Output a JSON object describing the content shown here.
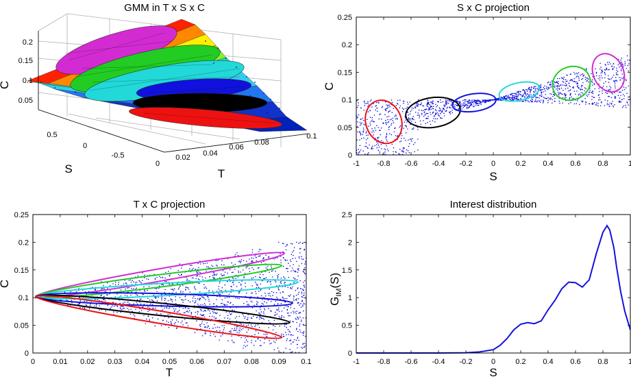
{
  "chart_data": [
    {
      "type": "surface3d",
      "title": "GMM in T x S x C",
      "xlabel": "T",
      "ylabel": "S",
      "zlabel": "C",
      "xticks": [
        "0",
        "0.02",
        "0.04",
        "0.06",
        "0.08",
        "0.1"
      ],
      "yticks": [
        "0.5",
        "0",
        "-0.5"
      ],
      "zticks": [
        "0.2",
        "0.15",
        "0.1",
        "0.05"
      ],
      "xlim": [
        0,
        0.1
      ],
      "ylim": [
        -1,
        1
      ],
      "zlim": [
        0,
        0.2
      ],
      "components": [
        {
          "color": "#d22bd2",
          "S": 0.83,
          "C": 0.145
        },
        {
          "color": "#22cc22",
          "S": 0.57,
          "C": 0.13
        },
        {
          "color": "#22d8d8",
          "S": 0.28,
          "C": 0.115
        },
        {
          "color": "#1111dd",
          "S": -0.26,
          "C": 0.095
        },
        {
          "color": "#000000",
          "S": -0.44,
          "C": 0.075
        },
        {
          "color": "#ee1111",
          "S": -0.8,
          "C": 0.06
        }
      ]
    },
    {
      "type": "scatter",
      "title": "S x C projection",
      "xlabel": "S",
      "ylabel": "C",
      "xlim": [
        -1,
        1
      ],
      "ylim": [
        0,
        0.25
      ],
      "xticks": [
        "-1",
        "-0.8",
        "-0.6",
        "-0.4",
        "-0.2",
        "0",
        "0.2",
        "0.4",
        "0.6",
        "0.8",
        "1"
      ],
      "yticks": [
        "0",
        "0.05",
        "0.1",
        "0.15",
        "0.2",
        "0.25"
      ],
      "point_color": "#1111dd",
      "ellipses": [
        {
          "color": "#ee1111",
          "cx": -0.8,
          "cy": 0.06,
          "rx": 0.13,
          "ry": 0.04,
          "angle": 20
        },
        {
          "color": "#000000",
          "cx": -0.44,
          "cy": 0.077,
          "rx": 0.2,
          "ry": 0.027,
          "angle": 8
        },
        {
          "color": "#1111dd",
          "cx": -0.14,
          "cy": 0.095,
          "rx": 0.16,
          "ry": 0.016,
          "angle": 8
        },
        {
          "color": "#22d8d8",
          "cx": 0.19,
          "cy": 0.115,
          "rx": 0.15,
          "ry": 0.016,
          "angle": 12
        },
        {
          "color": "#22cc22",
          "cx": 0.57,
          "cy": 0.13,
          "rx": 0.14,
          "ry": 0.03,
          "angle": 22
        },
        {
          "color": "#d22bd2",
          "cx": 0.84,
          "cy": 0.149,
          "rx": 0.11,
          "ry": 0.036,
          "angle": 25
        }
      ]
    },
    {
      "type": "scatter",
      "title": "T x C projection",
      "xlabel": "T",
      "ylabel": "C",
      "xlim": [
        0,
        0.1
      ],
      "ylim": [
        0,
        0.25
      ],
      "xticks": [
        "0",
        "0.01",
        "0.02",
        "0.03",
        "0.04",
        "0.05",
        "0.06",
        "0.07",
        "0.08",
        "0.09",
        "0.1"
      ],
      "yticks": [
        "0",
        "0.05",
        "0.1",
        "0.15",
        "0.2",
        "0.25"
      ],
      "point_color": "#1111dd",
      "ellipses": [
        {
          "color": "#d22bd2",
          "end": [
            0.092,
            0.18
          ]
        },
        {
          "color": "#22cc22",
          "end": [
            0.091,
            0.158
          ]
        },
        {
          "color": "#22d8d8",
          "end": [
            0.097,
            0.128
          ]
        },
        {
          "color": "#1111dd",
          "end": [
            0.095,
            0.09
          ]
        },
        {
          "color": "#000000",
          "end": [
            0.094,
            0.055
          ]
        },
        {
          "color": "#ee1111",
          "end": [
            0.091,
            0.028
          ]
        }
      ]
    },
    {
      "type": "line",
      "title": "Interest distribution",
      "xlabel": "S",
      "ylabel_base": "G",
      "ylabel_sub": "IM",
      "ylabel_tail": "(S)",
      "xlim": [
        -1,
        1
      ],
      "ylim": [
        0,
        2.5
      ],
      "xticks": [
        "-1",
        "-0.8",
        "-0.6",
        "-0.4",
        "-0.2",
        "0",
        "0.2",
        "0.4",
        "0.6",
        "0.8",
        "1"
      ],
      "yticks": [
        "0",
        "0.5",
        "1",
        "1.5",
        "2",
        "2.5"
      ],
      "series": [
        {
          "name": "G_IM(S)",
          "color": "#1111dd",
          "x": [
            -1,
            -0.4,
            -0.2,
            -0.1,
            0,
            0.05,
            0.1,
            0.15,
            0.2,
            0.25,
            0.3,
            0.35,
            0.4,
            0.45,
            0.5,
            0.55,
            0.6,
            0.65,
            0.7,
            0.75,
            0.8,
            0.83,
            0.85,
            0.88,
            0.9,
            0.93,
            0.96,
            1.0
          ],
          "y": [
            0,
            0,
            0.005,
            0.02,
            0.06,
            0.14,
            0.26,
            0.42,
            0.52,
            0.55,
            0.53,
            0.58,
            0.78,
            0.95,
            1.16,
            1.28,
            1.27,
            1.19,
            1.32,
            1.78,
            2.18,
            2.3,
            2.22,
            1.9,
            1.55,
            1.1,
            0.75,
            0.42
          ]
        }
      ]
    }
  ]
}
